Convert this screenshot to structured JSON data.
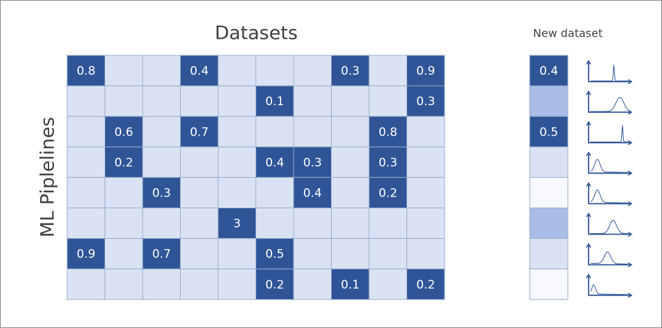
{
  "title": "Datasets",
  "row_axis_label": "ML Piplelines",
  "matrix": {
    "rows": [
      [
        0.8,
        null,
        null,
        0.4,
        null,
        null,
        null,
        0.3,
        null,
        0.9
      ],
      [
        null,
        null,
        null,
        null,
        null,
        0.1,
        null,
        null,
        null,
        0.3
      ],
      [
        null,
        0.6,
        null,
        0.7,
        null,
        null,
        null,
        null,
        0.8,
        null
      ],
      [
        null,
        0.2,
        null,
        null,
        null,
        0.4,
        0.3,
        null,
        0.3,
        null
      ],
      [
        null,
        null,
        0.3,
        null,
        null,
        null,
        0.4,
        null,
        0.2,
        null
      ],
      [
        null,
        null,
        null,
        null,
        3,
        null,
        null,
        null,
        null,
        null
      ],
      [
        0.9,
        null,
        0.7,
        null,
        null,
        0.5,
        null,
        null,
        null,
        null
      ],
      [
        null,
        null,
        null,
        null,
        null,
        0.2,
        null,
        0.1,
        null,
        0.2
      ]
    ],
    "filled_color": "#2f5597",
    "empty_color": "#dae3f3"
  },
  "new_dataset": {
    "label": "New dataset",
    "values": [
      0.4,
      null,
      0.5,
      null,
      null,
      null,
      null,
      null
    ],
    "colors": [
      "#2f5597",
      "#a9bde6",
      "#2f5597",
      "#dae3f3",
      "#f6f8fd",
      "#a9bde6",
      "#dae3f3",
      "#f6f8fd"
    ]
  }
}
